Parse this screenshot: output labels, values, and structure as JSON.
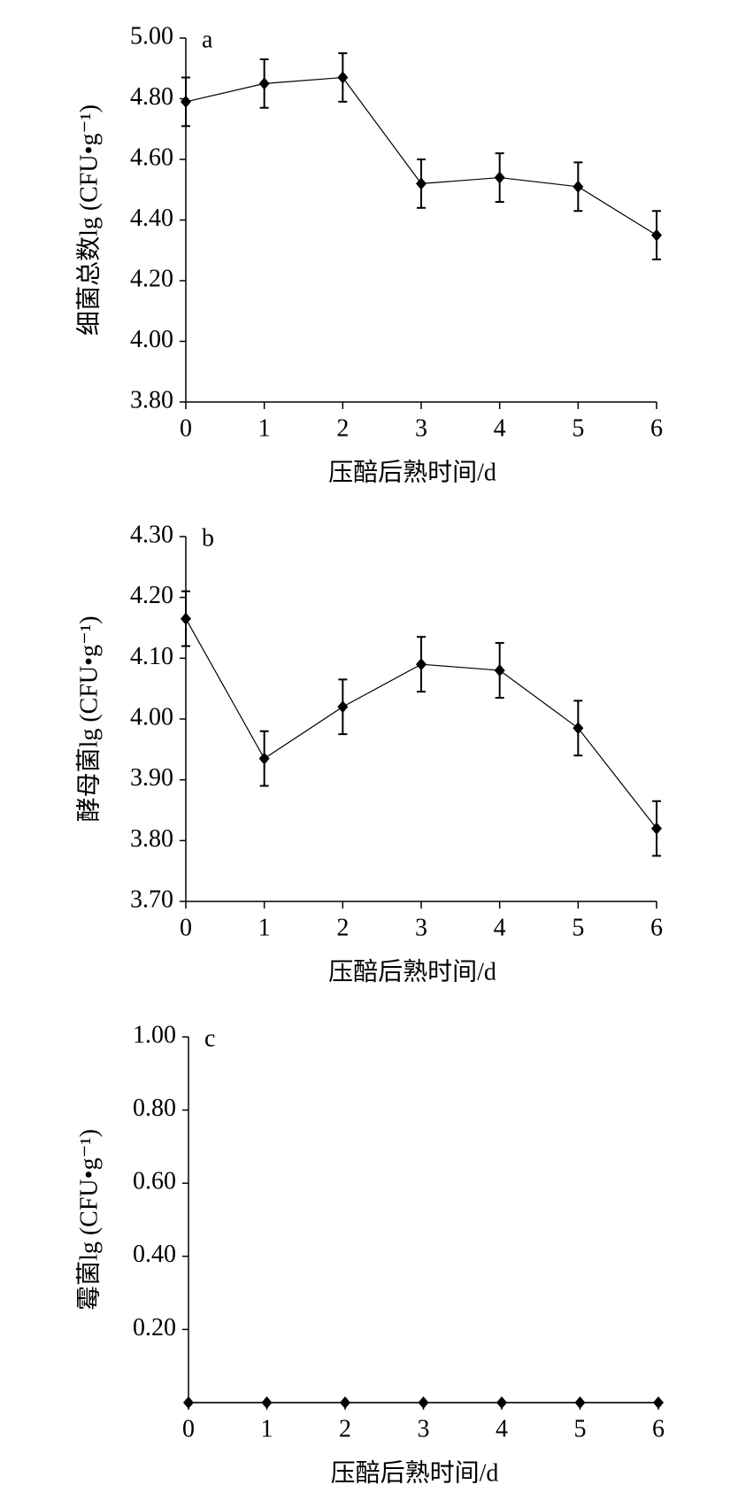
{
  "chart_data": [
    {
      "type": "line",
      "panel_label": "a",
      "xlabel": "压醅后熟时间/d",
      "ylabel": "细菌总数lg (CFU•g⁻¹)",
      "x": [
        0,
        1,
        2,
        3,
        4,
        5,
        6
      ],
      "xlim": [
        0,
        6
      ],
      "xticks": [
        0,
        1,
        2,
        3,
        4,
        5,
        6
      ],
      "ylim": [
        3.8,
        5.0
      ],
      "yticks": [
        {
          "value": 3.8,
          "label": "3.80"
        },
        {
          "value": 4.0,
          "label": "4.00"
        },
        {
          "value": 4.2,
          "label": "4.20"
        },
        {
          "value": 4.4,
          "label": "4.40"
        },
        {
          "value": 4.6,
          "label": "4.60"
        },
        {
          "value": 4.8,
          "label": "4.80"
        },
        {
          "value": 5.0,
          "label": "5.00"
        }
      ],
      "color": "#000000",
      "values": [
        4.79,
        4.85,
        4.87,
        4.52,
        4.54,
        4.51,
        4.35
      ],
      "errors": [
        0.08,
        0.08,
        0.08,
        0.08,
        0.08,
        0.08,
        0.08
      ]
    },
    {
      "type": "line",
      "panel_label": "b",
      "xlabel": "压醅后熟时间/d",
      "ylabel": "酵母菌lg (CFU•g⁻¹)",
      "x": [
        0,
        1,
        2,
        3,
        4,
        5,
        6
      ],
      "xlim": [
        0,
        6
      ],
      "xticks": [
        0,
        1,
        2,
        3,
        4,
        5,
        6
      ],
      "ylim": [
        3.7,
        4.3
      ],
      "yticks": [
        {
          "value": 3.7,
          "label": "3.70"
        },
        {
          "value": 3.8,
          "label": "3.80"
        },
        {
          "value": 3.9,
          "label": "3.90"
        },
        {
          "value": 4.0,
          "label": "4.00"
        },
        {
          "value": 4.1,
          "label": "4.10"
        },
        {
          "value": 4.2,
          "label": "4.20"
        },
        {
          "value": 4.3,
          "label": "4.30"
        }
      ],
      "color": "#000000",
      "values": [
        4.165,
        3.935,
        4.02,
        4.09,
        4.08,
        3.985,
        3.82
      ],
      "errors": [
        0.045,
        0.045,
        0.045,
        0.045,
        0.045,
        0.045,
        0.045
      ]
    },
    {
      "type": "line",
      "panel_label": "c",
      "xlabel": "压醅后熟时间/d",
      "ylabel": "霉菌lg (CFU•g⁻¹)",
      "x": [
        0,
        1,
        2,
        3,
        4,
        5,
        6
      ],
      "xlim": [
        0,
        6
      ],
      "xticks": [
        0,
        1,
        2,
        3,
        4,
        5,
        6
      ],
      "ylim": [
        0,
        1.0
      ],
      "yticks": [
        {
          "value": 0.2,
          "label": "0.20"
        },
        {
          "value": 0.4,
          "label": "0.40"
        },
        {
          "value": 0.6,
          "label": "0.60"
        },
        {
          "value": 0.8,
          "label": "0.80"
        },
        {
          "value": 1.0,
          "label": "1.00"
        }
      ],
      "color": "#000000",
      "values": [
        0,
        0,
        0,
        0,
        0,
        0,
        0
      ]
    }
  ]
}
